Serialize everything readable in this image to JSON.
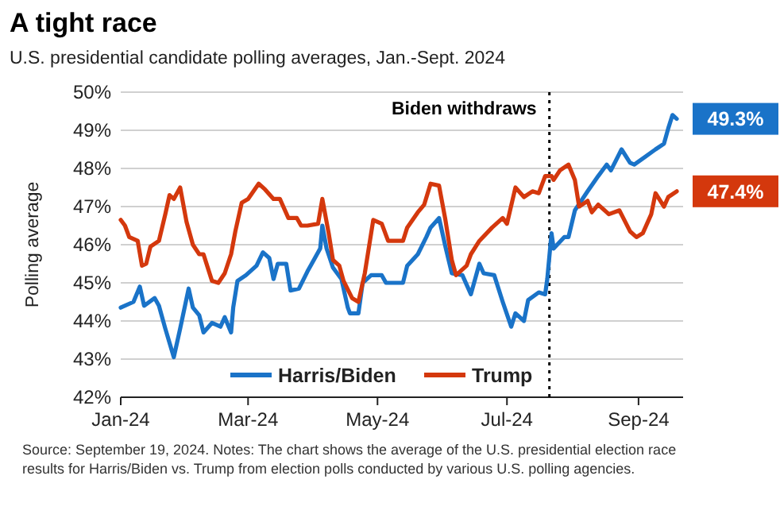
{
  "chart_data": {
    "type": "line",
    "title": "A tight race",
    "subtitle": "U.S. presidential candidate polling averages, Jan.-Sept. 2024",
    "ylabel": "Polling average",
    "xlim": [
      "2024-01-01",
      "2024-09-22"
    ],
    "xticks": [
      {
        "value": "2024-01-01",
        "label": "Jan-24"
      },
      {
        "value": "2024-03-01",
        "label": "Mar-24"
      },
      {
        "value": "2024-05-01",
        "label": "May-24"
      },
      {
        "value": "2024-07-01",
        "label": "Jul-24"
      },
      {
        "value": "2024-09-01",
        "label": "Sep-24"
      }
    ],
    "ylim": [
      42,
      50
    ],
    "yticks": [
      {
        "value": 42,
        "label": "42%"
      },
      {
        "value": 43,
        "label": "43%"
      },
      {
        "value": 44,
        "label": "44%"
      },
      {
        "value": 45,
        "label": "45%"
      },
      {
        "value": 46,
        "label": "46%"
      },
      {
        "value": 47,
        "label": "47%"
      },
      {
        "value": 48,
        "label": "48%"
      },
      {
        "value": 49,
        "label": "49%"
      },
      {
        "value": 50,
        "label": "50%"
      }
    ],
    "grid": "y",
    "legend": "bottom",
    "series": [
      {
        "name": "Harris/Biden",
        "color": "#1a73c8",
        "x": [
          "2024-01-01",
          "2024-01-07",
          "2024-01-10",
          "2024-01-12",
          "2024-01-17",
          "2024-01-19",
          "2024-01-22",
          "2024-01-26",
          "2024-01-29",
          "2024-02-02",
          "2024-02-04",
          "2024-02-07",
          "2024-02-09",
          "2024-02-13",
          "2024-02-17",
          "2024-02-19",
          "2024-02-22",
          "2024-02-23",
          "2024-02-25",
          "2024-02-29",
          "2024-03-05",
          "2024-03-08",
          "2024-03-11",
          "2024-03-13",
          "2024-03-15",
          "2024-03-19",
          "2024-03-21",
          "2024-03-25",
          "2024-03-29",
          "2024-03-31",
          "2024-04-04",
          "2024-04-05",
          "2024-04-07",
          "2024-04-10",
          "2024-04-14",
          "2024-04-17",
          "2024-04-18",
          "2024-04-22",
          "2024-04-24",
          "2024-04-28",
          "2024-05-03",
          "2024-05-05",
          "2024-05-13",
          "2024-05-15",
          "2024-05-20",
          "2024-05-24",
          "2024-05-26",
          "2024-05-30",
          "2024-06-02",
          "2024-06-05",
          "2024-06-10",
          "2024-06-14",
          "2024-06-18",
          "2024-06-20",
          "2024-06-25",
          "2024-06-29",
          "2024-07-03",
          "2024-07-05",
          "2024-07-09",
          "2024-07-11",
          "2024-07-16",
          "2024-07-19",
          "2024-07-20",
          "2024-07-22",
          "2024-07-23",
          "2024-07-28",
          "2024-07-30",
          "2024-08-02",
          "2024-08-08",
          "2024-08-13",
          "2024-08-17",
          "2024-08-19",
          "2024-08-24",
          "2024-08-28",
          "2024-08-30",
          "2024-09-04",
          "2024-09-09",
          "2024-09-13",
          "2024-09-15",
          "2024-09-17",
          "2024-09-19"
        ],
        "values": [
          44.35,
          44.5,
          44.9,
          44.4,
          44.6,
          44.4,
          43.8,
          43.05,
          43.8,
          44.85,
          44.35,
          44.15,
          43.7,
          43.95,
          43.85,
          44.1,
          43.7,
          44.35,
          45.05,
          45.2,
          45.45,
          45.8,
          45.65,
          45.1,
          45.5,
          45.5,
          44.8,
          44.85,
          45.3,
          45.5,
          45.9,
          46.5,
          45.9,
          45.4,
          45.1,
          44.35,
          44.2,
          44.2,
          45.0,
          45.2,
          45.2,
          45.0,
          45.0,
          45.45,
          45.75,
          46.2,
          46.45,
          46.7,
          45.95,
          45.25,
          45.2,
          44.7,
          45.5,
          45.25,
          45.2,
          44.5,
          43.85,
          44.2,
          44.0,
          44.55,
          44.75,
          44.7,
          45.1,
          46.3,
          45.9,
          46.2,
          46.2,
          46.9,
          47.4,
          47.8,
          48.1,
          47.95,
          48.5,
          48.15,
          48.1,
          48.3,
          48.5,
          48.65,
          49.05,
          49.4,
          49.3
        ]
      },
      {
        "name": "Trump",
        "color": "#d4380d",
        "x": [
          "2024-01-01",
          "2024-01-03",
          "2024-01-05",
          "2024-01-09",
          "2024-01-11",
          "2024-01-13",
          "2024-01-15",
          "2024-01-19",
          "2024-01-22",
          "2024-01-24",
          "2024-01-26",
          "2024-01-29",
          "2024-02-01",
          "2024-02-04",
          "2024-02-07",
          "2024-02-09",
          "2024-02-13",
          "2024-02-16",
          "2024-02-19",
          "2024-02-22",
          "2024-02-24",
          "2024-02-27",
          "2024-03-01",
          "2024-03-06",
          "2024-03-09",
          "2024-03-13",
          "2024-03-16",
          "2024-03-20",
          "2024-03-24",
          "2024-03-26",
          "2024-03-29",
          "2024-04-03",
          "2024-04-05",
          "2024-04-08",
          "2024-04-10",
          "2024-04-13",
          "2024-04-15",
          "2024-04-19",
          "2024-04-22",
          "2024-04-25",
          "2024-04-29",
          "2024-05-03",
          "2024-05-06",
          "2024-05-13",
          "2024-05-15",
          "2024-05-20",
          "2024-05-23",
          "2024-05-26",
          "2024-05-30",
          "2024-06-02",
          "2024-06-05",
          "2024-06-07",
          "2024-06-12",
          "2024-06-14",
          "2024-06-18",
          "2024-06-24",
          "2024-06-29",
          "2024-07-01",
          "2024-07-05",
          "2024-07-09",
          "2024-07-13",
          "2024-07-16",
          "2024-07-19",
          "2024-07-22",
          "2024-07-23",
          "2024-07-26",
          "2024-07-30",
          "2024-08-02",
          "2024-08-04",
          "2024-08-08",
          "2024-08-10",
          "2024-08-13",
          "2024-08-18",
          "2024-08-23",
          "2024-08-28",
          "2024-08-31",
          "2024-09-03",
          "2024-09-07",
          "2024-09-09",
          "2024-09-13",
          "2024-09-15",
          "2024-09-19"
        ],
        "values": [
          46.65,
          46.5,
          46.2,
          46.1,
          45.45,
          45.5,
          45.95,
          46.1,
          46.8,
          47.3,
          47.2,
          47.5,
          46.6,
          46.0,
          45.75,
          45.75,
          45.05,
          45.0,
          45.25,
          45.75,
          46.35,
          47.1,
          47.2,
          47.6,
          47.45,
          47.2,
          47.2,
          46.7,
          46.7,
          46.5,
          46.5,
          46.55,
          47.2,
          46.3,
          45.6,
          45.45,
          45.05,
          44.6,
          44.5,
          45.25,
          46.65,
          46.55,
          46.1,
          46.1,
          46.45,
          46.85,
          47.05,
          47.6,
          47.55,
          46.65,
          45.6,
          45.2,
          45.45,
          45.75,
          46.1,
          46.45,
          46.7,
          46.55,
          47.5,
          47.25,
          47.4,
          47.35,
          47.8,
          47.8,
          47.7,
          47.95,
          48.1,
          47.7,
          47.0,
          47.15,
          46.85,
          47.05,
          46.8,
          46.9,
          46.35,
          46.2,
          46.3,
          46.8,
          47.35,
          47.0,
          47.25,
          47.4
        ]
      }
    ],
    "ref_lines": [
      {
        "axis": "x",
        "value": "2024-07-21",
        "label": "Biden withdraws",
        "color": "#000000",
        "line_style": "dotted"
      }
    ],
    "annotations": [
      {
        "text": "49.3%",
        "x": "2024-09-19",
        "y": 49.3
      },
      {
        "text": "47.4%",
        "x": "2024-09-19",
        "y": 47.4
      },
      "Source: September 19, 2024. Notes: The chart shows the average of the U.S. presidential election race results for Harris/Biden vs. Trump from election polls conducted by various U.S. polling agencies."
    ]
  }
}
